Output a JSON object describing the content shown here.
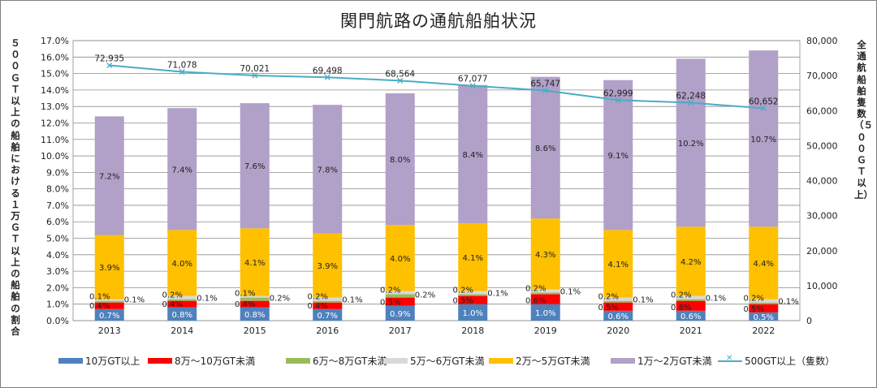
{
  "title": "関門航路の通航船舶状況",
  "left_axis_label": "５００ＧＴ以上の船舶における１万ＧＴ以上の船舶の割合",
  "right_axis_label": "全通航船舶隻数（５００ＧＴ以上）",
  "chart_data": {
    "type": "bar",
    "stacked": true,
    "categories": [
      "2013",
      "2014",
      "2015",
      "2016",
      "2017",
      "2018",
      "2019",
      "2020",
      "2021",
      "2022"
    ],
    "left_axis": {
      "min": 0,
      "max": 17,
      "step": 1,
      "unit": "%"
    },
    "right_axis": {
      "min": 0,
      "max": 80000,
      "step": 10000
    },
    "series": [
      {
        "name": "10万GT以上",
        "color": "#4F81BD",
        "values": [
          0.7,
          0.8,
          0.8,
          0.7,
          0.9,
          1.0,
          1.0,
          0.6,
          0.6,
          0.5
        ]
      },
      {
        "name": "8万～10万GT未満",
        "color": "#FF0000",
        "values": [
          0.4,
          0.4,
          0.4,
          0.4,
          0.5,
          0.5,
          0.6,
          0.5,
          0.6,
          0.5
        ]
      },
      {
        "name": "6万～8万GT未満",
        "color": "#9BBB59",
        "values": [
          0.1,
          0.1,
          0.2,
          0.1,
          0.2,
          0.1,
          0.1,
          0.1,
          0.1,
          0.1
        ]
      },
      {
        "name": "5万～6万GT未満",
        "color": "#D9D9D9",
        "values": [
          0.1,
          0.2,
          0.1,
          0.2,
          0.2,
          0.2,
          0.2,
          0.2,
          0.2,
          0.2
        ]
      },
      {
        "name": "2万～5万GT未満",
        "color": "#FFC000",
        "values": [
          3.9,
          4.0,
          4.1,
          3.9,
          4.0,
          4.1,
          4.3,
          4.1,
          4.2,
          4.4
        ]
      },
      {
        "name": "1万～2万GT未満",
        "color": "#B1A0C7",
        "values": [
          7.2,
          7.4,
          7.6,
          7.8,
          8.0,
          8.4,
          8.6,
          9.1,
          10.2,
          10.7
        ]
      }
    ],
    "line": {
      "name": "500GT以上（隻数）",
      "color": "#4BACC6",
      "axis": "right",
      "values": [
        72935,
        71078,
        70021,
        69498,
        68564,
        67077,
        65747,
        62999,
        62248,
        60652
      ],
      "labels": [
        "72,935",
        "71,078",
        "70,021",
        "69,498",
        "68,564",
        "67,077",
        "65,747",
        "62,999",
        "62,248",
        "60,652"
      ]
    }
  }
}
